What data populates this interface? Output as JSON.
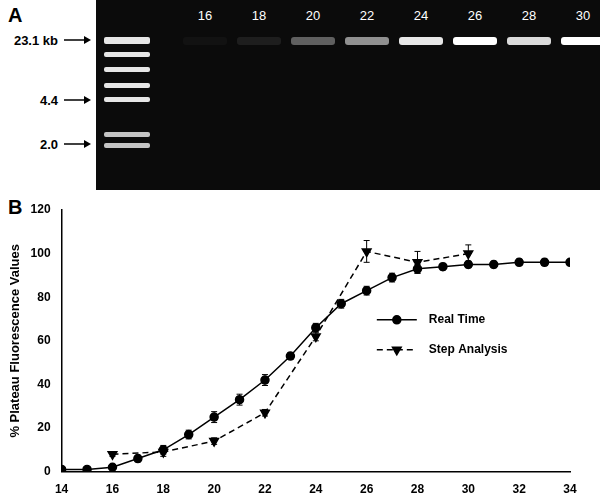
{
  "gel": {
    "panel_label": "A",
    "lane_labels": [
      "16",
      "18",
      "20",
      "22",
      "24",
      "26",
      "28",
      "30"
    ],
    "band_intensity": [
      0.03,
      0.08,
      0.35,
      0.55,
      0.9,
      1.0,
      0.85,
      1.0
    ],
    "marker_labels": [
      "23.1 kb",
      "4.4",
      "2.0"
    ]
  },
  "chart_data": {
    "type": "line",
    "panel_label": "B",
    "y_label": "% Plateau Fluorescence Values",
    "xlim": [
      14,
      34
    ],
    "xticks": [
      14,
      16,
      18,
      20,
      22,
      24,
      26,
      28,
      30,
      32,
      34
    ],
    "ylim": [
      0,
      120
    ],
    "yticks": [
      0,
      20,
      40,
      60,
      80,
      100,
      120
    ],
    "grid": false,
    "legend": "right",
    "series": [
      {
        "name": "Real Time",
        "color": "#000000",
        "marker": "circle",
        "line_style": "solid",
        "x": [
          14,
          15,
          16,
          17,
          18,
          19,
          20,
          21,
          22,
          23,
          24,
          25,
          26,
          27,
          28,
          29,
          30,
          31,
          32,
          33,
          34
        ],
        "values": [
          1,
          1,
          2,
          6,
          10,
          17,
          25,
          33,
          42,
          53,
          66,
          77,
          83,
          89,
          93,
          94,
          95,
          95,
          96,
          96,
          96
        ],
        "errors": [
          0.5,
          0.5,
          1,
          1.5,
          2,
          2,
          2.5,
          2.5,
          2.5,
          1.5,
          2,
          2,
          2,
          2,
          2,
          1.5,
          1.5,
          1.5,
          1.5,
          1.5,
          1
        ]
      },
      {
        "name": "Step Analysis",
        "color": "#000000",
        "marker": "triangle_down",
        "line_style": "dashed",
        "x": [
          16,
          18,
          20,
          22,
          24,
          26,
          28,
          30
        ],
        "values": [
          8,
          9,
          14,
          27,
          62,
          101,
          96,
          100
        ],
        "errors": [
          1,
          2,
          1.5,
          1.5,
          2,
          5,
          5,
          4
        ]
      }
    ]
  }
}
